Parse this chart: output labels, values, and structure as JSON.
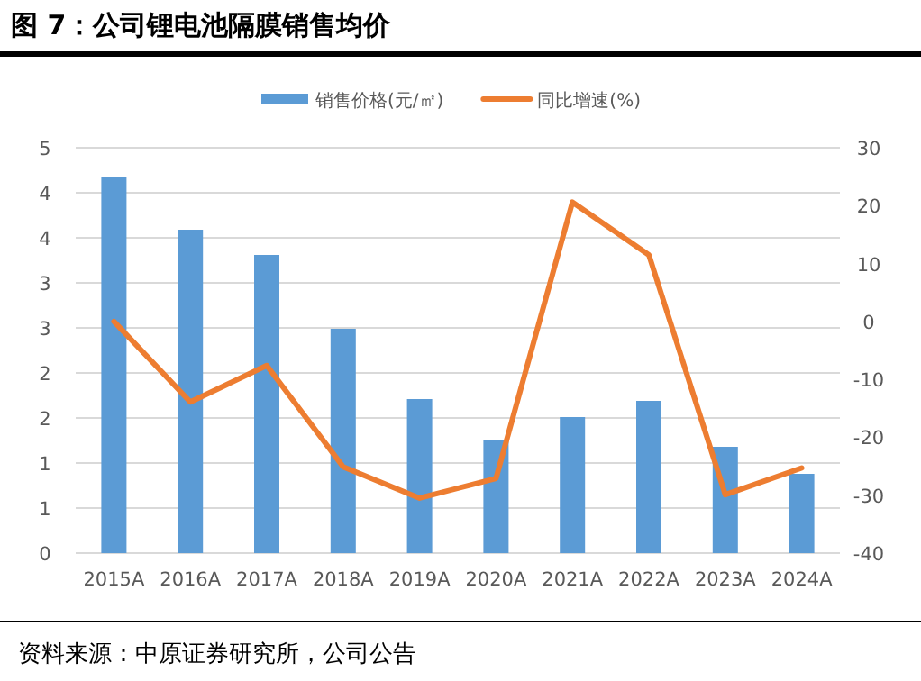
{
  "chart_data": {
    "type": "bar",
    "title": "图 7：公司锂电池隔膜销售均价",
    "categories": [
      "2015A",
      "2016A",
      "2017A",
      "2018A",
      "2019A",
      "2020A",
      "2021A",
      "2022A",
      "2023A",
      "2024A"
    ],
    "series": [
      {
        "name": "销售价格(元/㎡)",
        "color": "#5b9bd5",
        "values": [
          4.17,
          3.59,
          3.31,
          2.49,
          1.71,
          1.25,
          1.51,
          1.69,
          1.18,
          0.88
        ]
      },
      {
        "name": "同比增速(%)",
        "type": "line",
        "axis": "y2",
        "color": "#ed7d31",
        "values": [
          0,
          -13.9,
          -7.6,
          -25.1,
          -30.5,
          -27.1,
          20.6,
          11.5,
          -29.9,
          -25.3
        ]
      }
    ],
    "ylim": [
      0,
      4.5
    ],
    "yticks": [
      0,
      {
        "value": 0.5,
        "label": "1"
      },
      1,
      {
        "value": 1.5,
        "label": "2"
      },
      2,
      {
        "value": 2.5,
        "label": "3"
      },
      3,
      {
        "value": 3.5,
        "label": "4"
      },
      4,
      {
        "value": 4.5,
        "label": "5"
      }
    ],
    "y2lim": [
      -40,
      30
    ],
    "y2ticks": [
      -40,
      -30,
      -20,
      -10,
      0,
      10,
      20,
      30
    ],
    "grid": "y",
    "legend": "top",
    "marker": "none",
    "annotations": [
      "资料来源：中原证券研究所，公司公告"
    ]
  }
}
